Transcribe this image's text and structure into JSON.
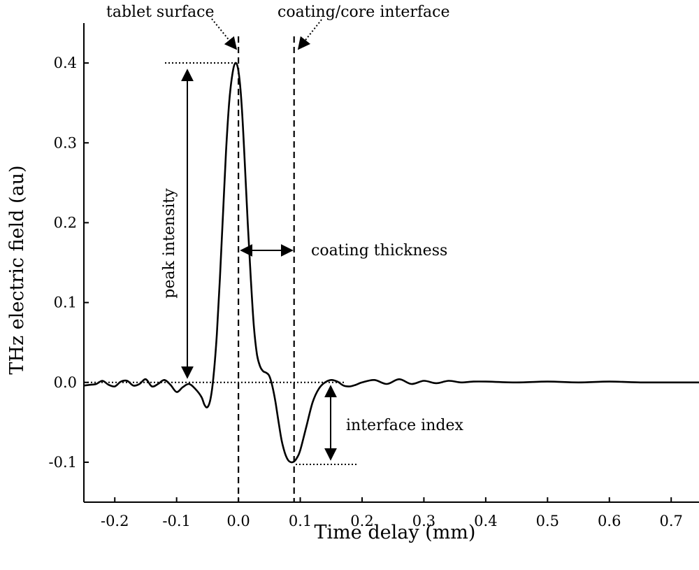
{
  "chart_data": {
    "type": "line",
    "title": "",
    "xlabel": "Time delay (mm)",
    "ylabel": "THz electric field (au)",
    "xlim": [
      -0.25,
      0.745
    ],
    "ylim": [
      -0.15,
      0.45
    ],
    "x_ticks": [
      -0.2,
      -0.1,
      0.0,
      0.1,
      0.2,
      0.3,
      0.4,
      0.5,
      0.6,
      0.7
    ],
    "x_tick_labels": [
      "-0.2",
      "-0.1",
      "0.0",
      "0.1",
      "0.2",
      "0.3",
      "0.4",
      "0.5",
      "0.6",
      "0.7"
    ],
    "y_ticks": [
      -0.1,
      0.0,
      0.1,
      0.2,
      0.3,
      0.4
    ],
    "y_tick_labels": [
      "-0.1",
      "0.0",
      "0.1",
      "0.2",
      "0.3",
      "0.4"
    ],
    "grid": false,
    "series": [
      {
        "x": [
          -0.25,
          -0.24,
          -0.23,
          -0.22,
          -0.21,
          -0.2,
          -0.19,
          -0.18,
          -0.17,
          -0.16,
          -0.15,
          -0.14,
          -0.13,
          -0.12,
          -0.11,
          -0.1,
          -0.09,
          -0.08,
          -0.07,
          -0.06,
          -0.055,
          -0.05,
          -0.045,
          -0.04,
          -0.035,
          -0.03,
          -0.025,
          -0.02,
          -0.015,
          -0.01,
          -0.005,
          0.0,
          0.005,
          0.01,
          0.015,
          0.02,
          0.025,
          0.03,
          0.035,
          0.04,
          0.045,
          0.05,
          0.055,
          0.06,
          0.065,
          0.07,
          0.075,
          0.08,
          0.085,
          0.09,
          0.095,
          0.1,
          0.11,
          0.12,
          0.13,
          0.14,
          0.15,
          0.16,
          0.17,
          0.18,
          0.19,
          0.2,
          0.22,
          0.24,
          0.26,
          0.28,
          0.3,
          0.32,
          0.34,
          0.36,
          0.38,
          0.4,
          0.45,
          0.5,
          0.55,
          0.6,
          0.65,
          0.7,
          0.745
        ],
        "y": [
          -0.004,
          -0.003,
          -0.002,
          0.002,
          -0.003,
          -0.005,
          0.001,
          0.002,
          -0.004,
          -0.002,
          0.004,
          -0.005,
          -0.002,
          0.003,
          -0.003,
          -0.012,
          -0.006,
          -0.002,
          -0.008,
          -0.018,
          -0.028,
          -0.031,
          -0.02,
          0.01,
          0.06,
          0.13,
          0.21,
          0.29,
          0.35,
          0.385,
          0.4,
          0.39,
          0.35,
          0.28,
          0.2,
          0.13,
          0.07,
          0.035,
          0.02,
          0.014,
          0.012,
          0.008,
          -0.005,
          -0.025,
          -0.05,
          -0.073,
          -0.088,
          -0.097,
          -0.1,
          -0.099,
          -0.094,
          -0.085,
          -0.055,
          -0.025,
          -0.008,
          0.0,
          0.003,
          0.001,
          -0.004,
          -0.005,
          -0.003,
          0.0,
          0.003,
          -0.002,
          0.004,
          -0.002,
          0.002,
          -0.001,
          0.002,
          0.0,
          0.001,
          0.001,
          0.0,
          0.001,
          0.0,
          0.001,
          0.0,
          0.0,
          0.0
        ]
      }
    ],
    "reference_lines": [
      {
        "orientation": "vertical",
        "x": 0.0,
        "style": "dashed"
      },
      {
        "orientation": "vertical",
        "x": 0.09,
        "style": "dashed"
      },
      {
        "orientation": "horizontal",
        "y": 0.0,
        "style": "dotted"
      }
    ],
    "annotations": [
      {
        "text": "tablet surface"
      },
      {
        "text": "coating/core interface"
      },
      {
        "text": "peak intensity"
      },
      {
        "text": "coating thickness"
      },
      {
        "text": "interface index"
      }
    ]
  }
}
